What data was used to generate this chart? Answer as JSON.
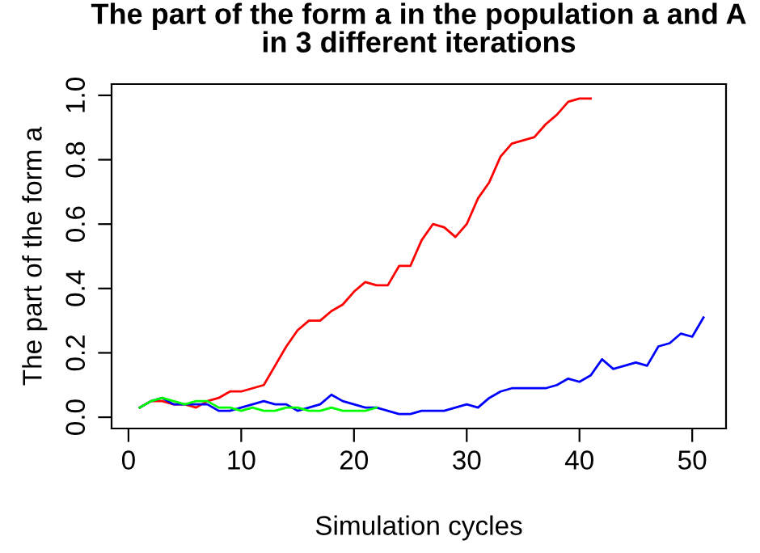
{
  "chart_data": {
    "type": "line",
    "title": "The part of the form a in the population a and A\nin 3 different iterations",
    "xlabel": "Simulation cycles",
    "ylabel": "The part of the form a",
    "xlim": [
      -1.5,
      53
    ],
    "ylim": [
      -0.035,
      1.035
    ],
    "xticks": [
      0,
      10,
      20,
      30,
      40,
      50
    ],
    "yticks": [
      {
        "value": 0,
        "label": "0.0"
      },
      0.2,
      0.4,
      0.6,
      0.8,
      {
        "value": 1,
        "label": "1.0"
      }
    ],
    "grid": false,
    "series": [
      {
        "color": "#ff0000",
        "x": [
          1,
          2,
          3,
          4,
          5,
          6,
          7,
          8,
          9,
          10,
          11,
          12,
          13,
          14,
          15,
          16,
          17,
          18,
          19,
          20,
          21,
          22,
          23,
          24,
          25,
          26,
          27,
          28,
          29,
          30,
          31,
          32,
          33,
          34,
          35,
          36,
          37,
          38,
          39,
          40,
          41
        ],
        "values": [
          0.03,
          0.05,
          0.05,
          0.04,
          0.04,
          0.03,
          0.05,
          0.06,
          0.08,
          0.08,
          0.09,
          0.1,
          0.16,
          0.22,
          0.27,
          0.3,
          0.3,
          0.33,
          0.35,
          0.39,
          0.42,
          0.41,
          0.41,
          0.47,
          0.47,
          0.55,
          0.6,
          0.59,
          0.56,
          0.6,
          0.68,
          0.73,
          0.81,
          0.85,
          0.86,
          0.87,
          0.91,
          0.94,
          0.98,
          0.99,
          0.99
        ]
      },
      {
        "color": "#0000ff",
        "x": [
          1,
          2,
          3,
          4,
          5,
          6,
          7,
          8,
          9,
          10,
          11,
          12,
          13,
          14,
          15,
          16,
          17,
          18,
          19,
          20,
          21,
          22,
          23,
          24,
          25,
          26,
          27,
          28,
          29,
          30,
          31,
          32,
          33,
          34,
          35,
          36,
          37,
          38,
          39,
          40,
          41,
          42,
          43,
          44,
          45,
          46,
          47,
          48,
          49,
          50,
          51
        ],
        "values": [
          0.03,
          0.05,
          0.06,
          0.04,
          0.04,
          0.04,
          0.04,
          0.02,
          0.02,
          0.03,
          0.04,
          0.05,
          0.04,
          0.04,
          0.02,
          0.03,
          0.04,
          0.07,
          0.05,
          0.04,
          0.03,
          0.03,
          0.02,
          0.01,
          0.01,
          0.02,
          0.02,
          0.02,
          0.03,
          0.04,
          0.03,
          0.06,
          0.08,
          0.09,
          0.09,
          0.09,
          0.09,
          0.1,
          0.12,
          0.11,
          0.13,
          0.18,
          0.15,
          0.16,
          0.17,
          0.16,
          0.22,
          0.23,
          0.26,
          0.25,
          0.31
        ]
      },
      {
        "color": "#00ff00",
        "x": [
          1,
          2,
          3,
          4,
          5,
          6,
          7,
          8,
          9,
          10,
          11,
          12,
          13,
          14,
          15,
          16,
          17,
          18,
          19,
          20,
          21,
          22
        ],
        "values": [
          0.03,
          0.05,
          0.06,
          0.05,
          0.04,
          0.05,
          0.05,
          0.03,
          0.03,
          0.02,
          0.03,
          0.02,
          0.02,
          0.03,
          0.03,
          0.02,
          0.02,
          0.03,
          0.02,
          0.02,
          0.02,
          0.03
        ]
      }
    ]
  }
}
